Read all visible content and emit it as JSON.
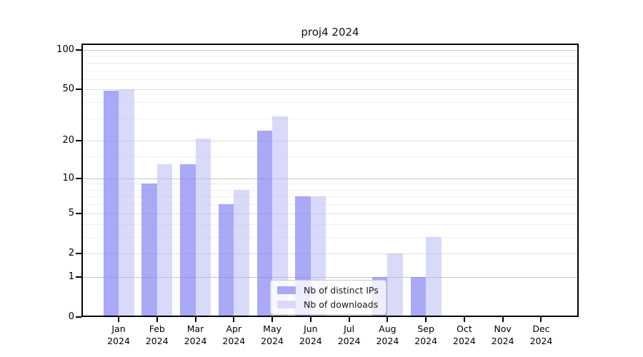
{
  "chart_data": {
    "type": "bar",
    "title": "proj4 2024",
    "year": "2024",
    "categories": [
      "Jan",
      "Feb",
      "Mar",
      "Apr",
      "May",
      "Jun",
      "Jul",
      "Aug",
      "Sep",
      "Oct",
      "Nov",
      "Dec"
    ],
    "series": [
      {
        "name": "Nb of distinct IPs",
        "color": "rgba(136,136,244,0.72)",
        "solid_color": "#a9a9f7",
        "values": [
          49,
          9,
          13,
          6,
          24,
          7,
          0,
          1,
          1,
          0,
          0,
          0
        ]
      },
      {
        "name": "Nb of downloads",
        "color": "rgba(179,179,243,0.5)",
        "solid_color": "#d9d9f9",
        "values": [
          50,
          13,
          21,
          8,
          31,
          7,
          0,
          2,
          3,
          0,
          0,
          0
        ]
      }
    ],
    "yscale": "log1p",
    "y_ticks": [
      100,
      50,
      20,
      10,
      5,
      2,
      1,
      0
    ],
    "y_minor_gridlines": [
      3,
      4,
      6,
      7,
      8,
      9,
      15,
      30,
      40,
      60,
      70,
      80,
      90
    ],
    "y_decade_lines": [
      1,
      10,
      100
    ],
    "ylim": [
      0,
      112
    ],
    "grid": true,
    "legend_position": "lower-center",
    "colors": {
      "grid_major": "#dedede",
      "grid_minor": "#f0f0f0",
      "grid_decade": "#c6c6c6",
      "axis": "#000000",
      "background": "#ffffff"
    }
  }
}
